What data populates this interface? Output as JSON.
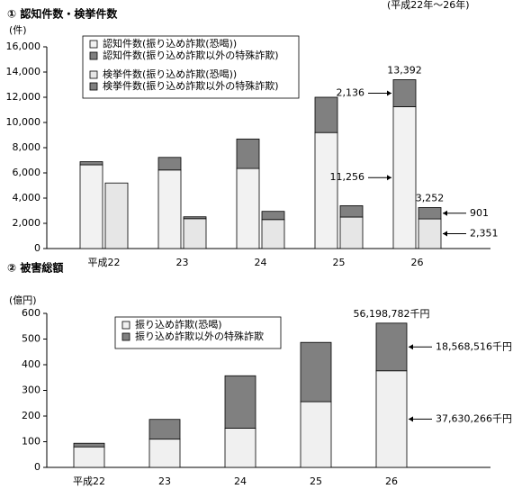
{
  "chart_data": [
    {
      "type": "bar",
      "title": "① 認知件数・検挙件数",
      "subtitle": "(平成22年～26年)",
      "y_unit": "(件)",
      "categories": [
        "平成22",
        "23",
        "24",
        "25",
        "26"
      ],
      "ylim": [
        0,
        16000
      ],
      "yticks": [
        0,
        {
          "value": 2000,
          "label": "2,000"
        },
        {
          "value": 4000,
          "label": "4,000"
        },
        {
          "value": 6000,
          "label": "6,000"
        },
        {
          "value": 8000,
          "label": "8,000"
        },
        {
          "value": 10000,
          "label": "10,000"
        },
        {
          "value": 12000,
          "label": "12,000"
        },
        {
          "value": 14000,
          "label": "14,000"
        },
        {
          "value": 16000,
          "label": "16,000"
        }
      ],
      "series": [
        {
          "name": "認知件数(振り込め詐欺(恐喝))",
          "color": "#f2f2f2",
          "stack": 0,
          "values": [
            6640,
            6230,
            6350,
            9200,
            11256
          ],
          "value_labels": [
            null,
            null,
            null,
            null,
            "11,256"
          ]
        },
        {
          "name": "認知件数(振り込め詐欺以外の特殊詐欺)",
          "color": "#808080",
          "stack": 0,
          "values": [
            250,
            1000,
            2340,
            2800,
            2136
          ],
          "value_labels": [
            null,
            null,
            null,
            null,
            "2,136"
          ]
        },
        {
          "name": "検挙件数(振り込め詐欺(恐喝))",
          "color": "#e6e6e6",
          "stack": 1,
          "values": [
            5200,
            2370,
            2300,
            2500,
            2351
          ],
          "value_labels": [
            null,
            null,
            null,
            null,
            "2,351"
          ]
        },
        {
          "name": "検挙件数(振り込め詐欺以外の特殊詐欺)",
          "color": "#808080",
          "stack": 1,
          "values": [
            0,
            150,
            650,
            900,
            901
          ],
          "value_labels": [
            null,
            null,
            null,
            null,
            "901"
          ]
        }
      ],
      "stack_labels": [
        [
          null,
          null,
          null,
          null,
          "13,392"
        ],
        [
          null,
          null,
          null,
          null,
          "3,252"
        ]
      ]
    },
    {
      "type": "bar",
      "title": "② 被害総額",
      "y_unit": "(億円)",
      "categories": [
        "平成22",
        "23",
        "24",
        "25",
        "26"
      ],
      "ylim": [
        0,
        600
      ],
      "yticks": [
        0,
        100,
        200,
        300,
        400,
        500,
        600
      ],
      "series": [
        {
          "name": "振り込め詐欺(恐喝)",
          "color": "#f0f0f0",
          "stack": 0,
          "values": [
            80,
            110,
            153,
            256,
            376.30266
          ],
          "value_labels": [
            null,
            null,
            null,
            null,
            "37,630,266千円"
          ]
        },
        {
          "name": "振り込め詐欺以外の特殊詐欺",
          "color": "#808080",
          "stack": 0,
          "values": [
            14,
            77,
            204,
            231,
            185.68516
          ],
          "value_labels": [
            null,
            null,
            null,
            null,
            "18,568,516千円"
          ]
        }
      ],
      "stack_labels": [
        [
          null,
          null,
          null,
          null,
          "56,198,782千円"
        ]
      ]
    }
  ]
}
